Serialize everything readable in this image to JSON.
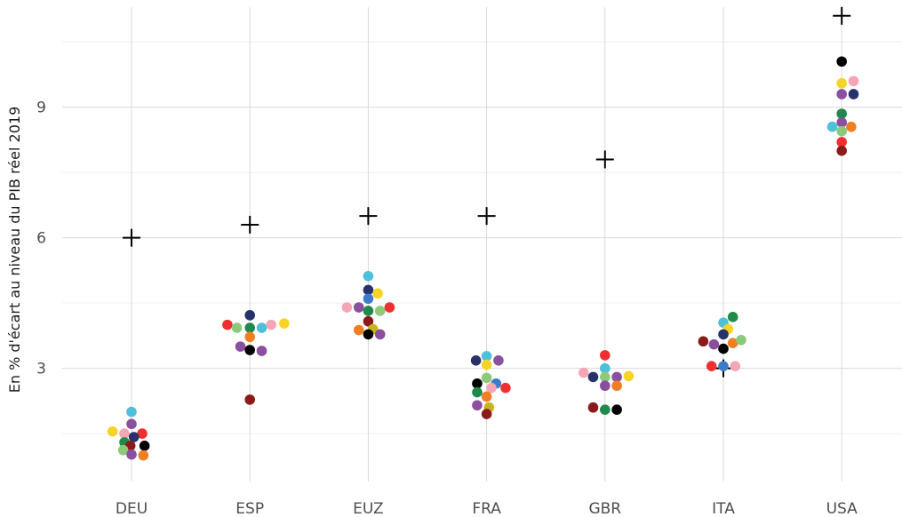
{
  "chart_data": {
    "type": "scatter",
    "title": "",
    "xlabel": "",
    "ylabel": "En % d'écart au niveau du PIB réel 2019",
    "categories": [
      "DEU",
      "ESP",
      "EUZ",
      "FRA",
      "GBR",
      "ITA",
      "USA"
    ],
    "yticks": [
      3,
      6,
      9
    ],
    "ylim": [
      0.4,
      11.3
    ],
    "grid": true,
    "legend": "none",
    "markers": {
      "reference": {
        "shape": "plus",
        "color": "#000000"
      },
      "dots": {
        "shape": "circle"
      }
    },
    "reference_values": {
      "DEU": 6.0,
      "ESP": 6.3,
      "EUZ": 6.5,
      "FRA": 6.5,
      "GBR": 7.8,
      "ITA": 3.0,
      "USA": 11.1
    },
    "points": {
      "DEU": [
        {
          "x": -0.16,
          "y": 1.55,
          "color": "#f5d327"
        },
        {
          "x": 0.0,
          "y": 2.0,
          "color": "#4ec0d9"
        },
        {
          "x": 0.0,
          "y": 1.72,
          "color": "#8a4f9e"
        },
        {
          "x": -0.06,
          "y": 1.5,
          "color": "#f4a6b4"
        },
        {
          "x": 0.09,
          "y": 1.5,
          "color": "#f03030"
        },
        {
          "x": 0.02,
          "y": 1.42,
          "color": "#27326b"
        },
        {
          "x": -0.06,
          "y": 1.3,
          "color": "#1f8a4c"
        },
        {
          "x": -0.01,
          "y": 1.22,
          "color": "#8b1a1a"
        },
        {
          "x": 0.11,
          "y": 1.22,
          "color": "#000000"
        },
        {
          "x": -0.07,
          "y": 1.12,
          "color": "#8dc97a"
        },
        {
          "x": 0.0,
          "y": 1.02,
          "color": "#8a4f9e"
        },
        {
          "x": 0.1,
          "y": 1.0,
          "color": "#f07f24"
        }
      ],
      "ESP": [
        {
          "x": -0.19,
          "y": 4.0,
          "color": "#f03030"
        },
        {
          "x": -0.11,
          "y": 3.93,
          "color": "#8dc97a"
        },
        {
          "x": 0.0,
          "y": 4.22,
          "color": "#27326b"
        },
        {
          "x": 0.0,
          "y": 3.93,
          "color": "#1f8a4c"
        },
        {
          "x": 0.1,
          "y": 3.93,
          "color": "#4ec0d9"
        },
        {
          "x": 0.18,
          "y": 4.0,
          "color": "#f4a6b4"
        },
        {
          "x": 0.29,
          "y": 4.03,
          "color": "#f5d327"
        },
        {
          "x": 0.0,
          "y": 3.72,
          "color": "#f07f24"
        },
        {
          "x": -0.08,
          "y": 3.5,
          "color": "#8a4f9e"
        },
        {
          "x": 0.0,
          "y": 3.42,
          "color": "#000000"
        },
        {
          "x": 0.1,
          "y": 3.4,
          "color": "#8a4f9e"
        },
        {
          "x": 0.0,
          "y": 2.28,
          "color": "#8b1a1a"
        }
      ],
      "EUZ": [
        {
          "x": 0.0,
          "y": 5.12,
          "color": "#4ec0d9"
        },
        {
          "x": 0.0,
          "y": 4.8,
          "color": "#27326b"
        },
        {
          "x": 0.08,
          "y": 4.72,
          "color": "#f5d327"
        },
        {
          "x": 0.0,
          "y": 4.6,
          "color": "#3d7cc9"
        },
        {
          "x": -0.18,
          "y": 4.4,
          "color": "#f4a6b4"
        },
        {
          "x": -0.08,
          "y": 4.4,
          "color": "#8a4f9e"
        },
        {
          "x": 0.0,
          "y": 4.32,
          "color": "#1f8a4c"
        },
        {
          "x": 0.1,
          "y": 4.32,
          "color": "#8dc97a"
        },
        {
          "x": 0.18,
          "y": 4.4,
          "color": "#f03030"
        },
        {
          "x": 0.0,
          "y": 4.08,
          "color": "#8b1a1a"
        },
        {
          "x": -0.08,
          "y": 3.88,
          "color": "#f07f24"
        },
        {
          "x": 0.04,
          "y": 3.9,
          "color": "#c8b41e"
        },
        {
          "x": 0.0,
          "y": 3.78,
          "color": "#000000"
        },
        {
          "x": 0.1,
          "y": 3.78,
          "color": "#8a4f9e"
        }
      ],
      "FRA": [
        {
          "x": -0.09,
          "y": 3.18,
          "color": "#27326b"
        },
        {
          "x": 0.0,
          "y": 3.28,
          "color": "#4ec0d9"
        },
        {
          "x": 0.1,
          "y": 3.18,
          "color": "#8a4f9e"
        },
        {
          "x": 0.0,
          "y": 3.08,
          "color": "#f5d327"
        },
        {
          "x": 0.0,
          "y": 2.78,
          "color": "#8dc97a"
        },
        {
          "x": -0.08,
          "y": 2.65,
          "color": "#000000"
        },
        {
          "x": 0.08,
          "y": 2.65,
          "color": "#3d7cc9"
        },
        {
          "x": 0.04,
          "y": 2.55,
          "color": "#f4a6b4"
        },
        {
          "x": 0.16,
          "y": 2.55,
          "color": "#f03030"
        },
        {
          "x": -0.08,
          "y": 2.45,
          "color": "#1f8a4c"
        },
        {
          "x": 0.0,
          "y": 2.35,
          "color": "#f07f24"
        },
        {
          "x": -0.08,
          "y": 2.15,
          "color": "#8a4f9e"
        },
        {
          "x": 0.02,
          "y": 2.1,
          "color": "#c8b41e"
        },
        {
          "x": 0.0,
          "y": 1.95,
          "color": "#8b1a1a"
        }
      ],
      "GBR": [
        {
          "x": 0.0,
          "y": 3.3,
          "color": "#f03030"
        },
        {
          "x": 0.0,
          "y": 3.0,
          "color": "#4ec0d9"
        },
        {
          "x": -0.18,
          "y": 2.9,
          "color": "#f4a6b4"
        },
        {
          "x": -0.1,
          "y": 2.8,
          "color": "#27326b"
        },
        {
          "x": 0.0,
          "y": 2.8,
          "color": "#8dc97a"
        },
        {
          "x": 0.1,
          "y": 2.8,
          "color": "#8a4f9e"
        },
        {
          "x": 0.2,
          "y": 2.82,
          "color": "#f5d327"
        },
        {
          "x": 0.0,
          "y": 2.6,
          "color": "#8a4f9e"
        },
        {
          "x": 0.1,
          "y": 2.6,
          "color": "#f07f24"
        },
        {
          "x": -0.1,
          "y": 2.1,
          "color": "#8b1a1a"
        },
        {
          "x": 0.0,
          "y": 2.05,
          "color": "#1f8a4c"
        },
        {
          "x": 0.1,
          "y": 2.05,
          "color": "#000000"
        }
      ],
      "ITA": [
        {
          "x": 0.08,
          "y": 4.18,
          "color": "#1f8a4c"
        },
        {
          "x": 0.0,
          "y": 4.05,
          "color": "#4ec0d9"
        },
        {
          "x": 0.04,
          "y": 3.9,
          "color": "#f5d327"
        },
        {
          "x": 0.0,
          "y": 3.78,
          "color": "#27326b"
        },
        {
          "x": -0.17,
          "y": 3.62,
          "color": "#8b1a1a"
        },
        {
          "x": -0.08,
          "y": 3.55,
          "color": "#8a4f9e"
        },
        {
          "x": 0.08,
          "y": 3.58,
          "color": "#f07f24"
        },
        {
          "x": 0.15,
          "y": 3.65,
          "color": "#8dc97a"
        },
        {
          "x": 0.0,
          "y": 3.45,
          "color": "#000000"
        },
        {
          "x": -0.1,
          "y": 3.05,
          "color": "#f03030"
        },
        {
          "x": 0.0,
          "y": 3.05,
          "color": "#3d7cc9"
        },
        {
          "x": 0.1,
          "y": 3.05,
          "color": "#f4a6b4"
        }
      ],
      "USA": [
        {
          "x": 0.0,
          "y": 10.05,
          "color": "#000000"
        },
        {
          "x": 0.0,
          "y": 9.55,
          "color": "#f5d327"
        },
        {
          "x": 0.1,
          "y": 9.6,
          "color": "#f4a6b4"
        },
        {
          "x": 0.0,
          "y": 9.3,
          "color": "#8a4f9e"
        },
        {
          "x": 0.1,
          "y": 9.3,
          "color": "#27326b"
        },
        {
          "x": 0.0,
          "y": 8.85,
          "color": "#1f8a4c"
        },
        {
          "x": 0.0,
          "y": 8.65,
          "color": "#8a4f9e"
        },
        {
          "x": -0.08,
          "y": 8.55,
          "color": "#4ec0d9"
        },
        {
          "x": 0.0,
          "y": 8.45,
          "color": "#8dc97a"
        },
        {
          "x": 0.08,
          "y": 8.55,
          "color": "#f07f24"
        },
        {
          "x": 0.0,
          "y": 8.2,
          "color": "#f03030"
        },
        {
          "x": 0.0,
          "y": 8.0,
          "color": "#8b1a1a"
        }
      ]
    }
  }
}
